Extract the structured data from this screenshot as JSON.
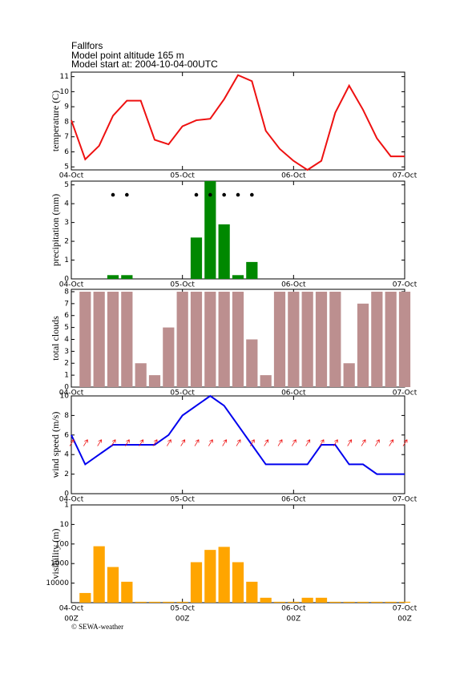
{
  "header": {
    "lines": [
      "Fallfors",
      "Model point altitude  165 m",
      "Model start at: 2004-10-04-00UTC"
    ]
  },
  "footer": "© SEWA-weather",
  "chart_data": [
    {
      "type": "line",
      "y_label": "temperature (C)",
      "color": "#ee1111",
      "x": [
        0,
        3,
        6,
        9,
        12,
        15,
        18,
        21,
        24,
        27,
        30,
        33,
        36,
        39,
        42,
        45,
        48,
        51,
        54,
        57,
        60,
        63,
        66,
        69,
        72
      ],
      "values": [
        8.1,
        5.5,
        6.4,
        8.4,
        9.4,
        9.4,
        6.8,
        6.5,
        7.7,
        8.1,
        8.2,
        9.5,
        11.1,
        10.7,
        7.4,
        6.2,
        5.4,
        4.8,
        5.4,
        8.6,
        10.4,
        8.8,
        6.9,
        5.7,
        5.7
      ],
      "xlim": [
        0,
        72
      ],
      "xticks": [
        {
          "value": 0,
          "label": "04-Oct"
        },
        {
          "value": 24,
          "label": "05-Oct"
        },
        {
          "value": 48,
          "label": "06-Oct"
        },
        {
          "value": 72,
          "label": "07-Oct"
        }
      ],
      "ylim": [
        4.8,
        11.3
      ],
      "yticks": [
        5,
        6,
        7,
        8,
        9,
        10,
        11
      ]
    },
    {
      "type": "bar",
      "y_label": "precipitation (mm)",
      "color": "#008800",
      "markers": true,
      "x": [
        9,
        12,
        27,
        30,
        33,
        36,
        39
      ],
      "values": [
        0.2,
        0.2,
        2.2,
        5.2,
        2.9,
        0.2,
        0.9
      ],
      "xlim": [
        0,
        72
      ],
      "xticks": [
        {
          "value": 0,
          "label": "04-Oct"
        },
        {
          "value": 24,
          "label": "05-Oct"
        },
        {
          "value": 48,
          "label": "06-Oct"
        },
        {
          "value": 72,
          "label": "07-Oct"
        }
      ],
      "ylim": [
        0,
        5.2
      ],
      "yticks": [
        0,
        1,
        2,
        3,
        4,
        5
      ]
    },
    {
      "type": "bar",
      "y_label": "total clouds",
      "color": "#bc8f8f",
      "x": [
        3,
        6,
        9,
        12,
        15,
        18,
        21,
        24,
        27,
        30,
        33,
        36,
        39,
        42,
        45,
        48,
        51,
        54,
        57,
        60,
        63,
        66,
        69,
        72
      ],
      "values": [
        8,
        8,
        8,
        8,
        2,
        1,
        5,
        8,
        8,
        8,
        8,
        8,
        4,
        1,
        8,
        8,
        8,
        8,
        8,
        2,
        7,
        8,
        8,
        8
      ],
      "xlim": [
        0,
        72
      ],
      "xticks": [
        {
          "value": 0,
          "label": "04-Oct"
        },
        {
          "value": 24,
          "label": "05-Oct"
        },
        {
          "value": 48,
          "label": "06-Oct"
        },
        {
          "value": 72,
          "label": "07-Oct"
        }
      ],
      "ylim": [
        0,
        8.2
      ],
      "yticks": [
        0,
        1,
        2,
        3,
        4,
        5,
        6,
        7,
        8
      ]
    },
    {
      "type": "line",
      "y_label": "wind speed (m/s)",
      "color": "#0000ee",
      "arrows_color": "#ee1111",
      "x": [
        0,
        3,
        6,
        9,
        12,
        15,
        18,
        21,
        24,
        27,
        30,
        33,
        36,
        39,
        42,
        45,
        48,
        51,
        54,
        57,
        60,
        63,
        66,
        69,
        72
      ],
      "values": [
        6,
        3,
        4,
        5,
        5,
        5,
        5,
        6,
        8,
        9,
        10,
        9,
        7,
        5,
        3,
        3,
        3,
        3,
        5,
        5,
        3,
        3,
        2,
        2,
        2
      ],
      "xlim": [
        0,
        72
      ],
      "xticks": [
        {
          "value": 0,
          "label": "04-Oct"
        },
        {
          "value": 24,
          "label": "05-Oct"
        },
        {
          "value": 48,
          "label": "06-Oct"
        },
        {
          "value": 72,
          "label": "07-Oct"
        }
      ],
      "ylim": [
        0,
        10
      ],
      "yticks": [
        0,
        2,
        4,
        6,
        8,
        10
      ]
    },
    {
      "type": "bar",
      "y_label": "visibility (m)",
      "color": "#ffa500",
      "log": true,
      "inverted": true,
      "x": [
        3,
        6,
        9,
        12,
        15,
        18,
        21,
        24,
        27,
        30,
        33,
        36,
        39,
        42,
        45,
        48,
        51,
        54,
        57,
        60,
        63,
        66,
        69,
        72
      ],
      "values": [
        32000,
        130,
        1500,
        8500,
        90000,
        90000,
        90000,
        90000,
        850,
        200,
        140,
        850,
        8500,
        56000,
        90000,
        90000,
        56000,
        56000,
        90000,
        90000,
        90000,
        90000,
        90000,
        90000
      ],
      "xlim": [
        0,
        72
      ],
      "xticks": [
        {
          "value": 0,
          "label": "04-Oct"
        },
        {
          "value": 24,
          "label": "05-Oct"
        },
        {
          "value": 48,
          "label": "06-Oct"
        },
        {
          "value": 72,
          "label": "07-Oct"
        }
      ],
      "xsublabels": [
        "00Z",
        "00Z",
        "00Z",
        "00Z"
      ],
      "ylim": [
        1,
        100000
      ],
      "yticks": [
        1,
        10,
        100,
        1000,
        10000
      ]
    }
  ]
}
